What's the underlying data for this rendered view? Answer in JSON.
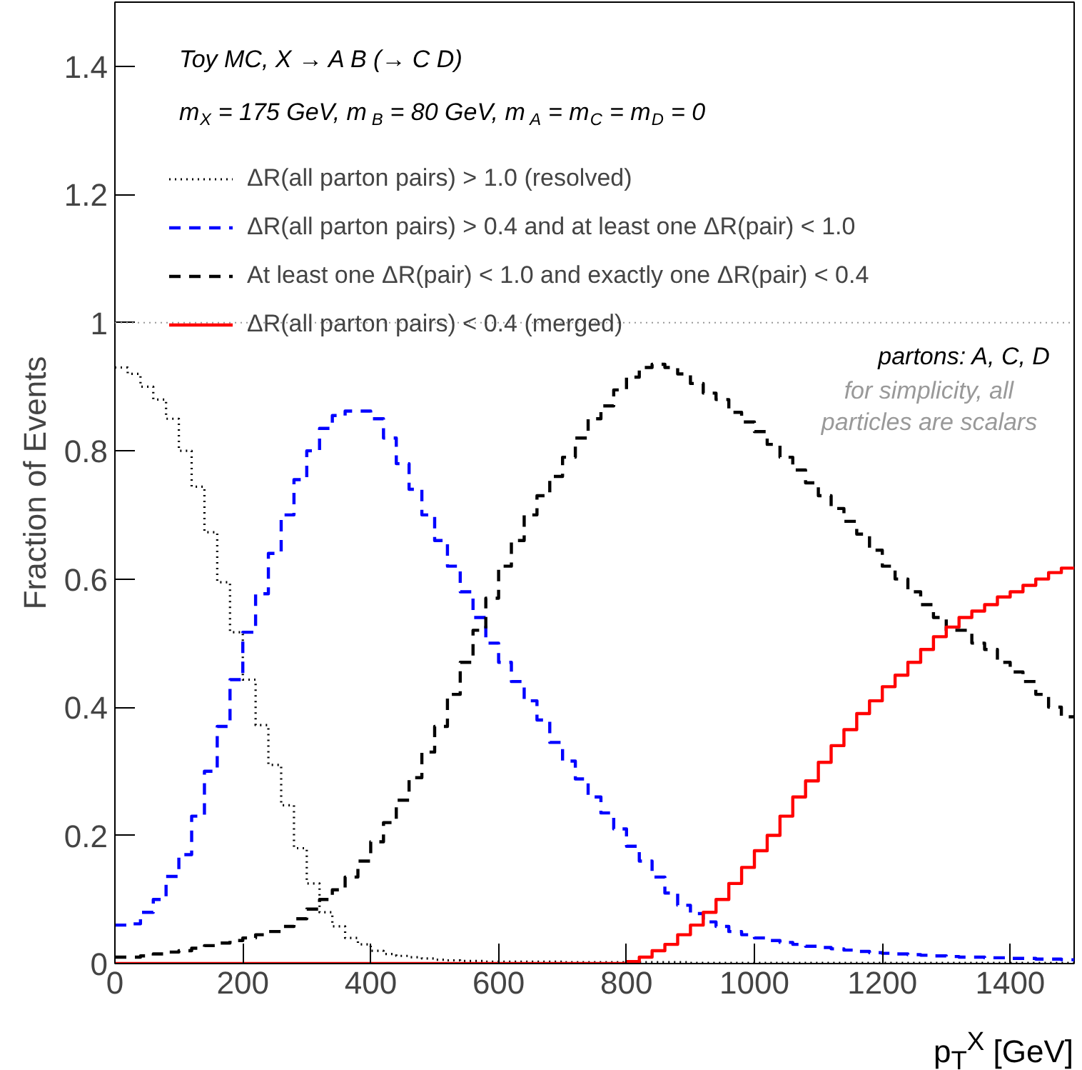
{
  "chart_data": {
    "type": "histogram",
    "xlabel": "p$_{T}$$^{X}$ [GeV]",
    "ylabel": "Fraction of Events",
    "annotations": [
      "Toy MC, X → A B (→ C D)",
      "m$_{X}$ = 175 GeV, m$_{B}$ = 80 GeV, m$_{A}$ = m$_{C}$ = m$_{D}$ = 0",
      "partons: A, C, D",
      "for simplicity, all\nparticles are scalars"
    ],
    "bins": [
      0,
      20,
      40,
      60,
      80,
      100,
      120,
      140,
      160,
      180,
      200,
      220,
      240,
      260,
      280,
      300,
      320,
      340,
      360,
      380,
      400,
      420,
      440,
      460,
      480,
      500,
      520,
      540,
      560,
      580,
      600,
      620,
      640,
      660,
      680,
      700,
      720,
      740,
      760,
      780,
      800,
      820,
      840,
      860,
      880,
      900,
      920,
      940,
      960,
      980,
      1000,
      1020,
      1040,
      1060,
      1080,
      1100,
      1120,
      1140,
      1160,
      1180,
      1200,
      1220,
      1240,
      1260,
      1280,
      1300,
      1320,
      1340,
      1360,
      1380,
      1400,
      1420,
      1440,
      1460,
      1480,
      1500
    ],
    "series": [
      {
        "name": "ΔR(all parton pairs) > 1.0 (resolved)",
        "color": "#000000",
        "line_style": "dotted",
        "values": [
          0.93,
          0.92,
          0.9,
          0.88,
          0.85,
          0.8,
          0.744,
          0.673,
          0.595,
          0.517,
          0.443,
          0.372,
          0.31,
          0.247,
          0.18,
          0.125,
          0.08,
          0.058,
          0.04,
          0.03,
          0.02,
          0.015,
          0.012,
          0.01,
          0.008,
          0.006,
          0.005,
          0.004,
          0.004,
          0.003,
          0.003,
          0.003,
          0.003,
          0.003,
          0.003,
          0.002,
          0.002,
          0.002,
          0.002,
          0.002,
          0.002,
          0.002,
          0.002,
          0.002,
          0.002,
          0.001,
          0.001,
          0.001,
          0.001,
          0.001,
          0.001,
          0.001,
          0.001,
          0.001,
          0.001,
          0.001,
          0.001,
          0.001,
          0.001,
          0.001,
          0.001,
          0.001,
          0.001,
          0.001,
          0.001,
          0.001,
          0.001,
          0.001,
          0.001,
          0.001,
          0.001,
          0.001,
          0.001,
          0.001,
          0.001
        ]
      },
      {
        "name": "ΔR(all parton pairs) > 0.4 and at least one ΔR(pair) < 1.0",
        "color": "#0000ff",
        "line_style": "dashed",
        "values": [
          0.06,
          0.062,
          0.08,
          0.1,
          0.136,
          0.17,
          0.23,
          0.3,
          0.37,
          0.443,
          0.517,
          0.577,
          0.64,
          0.7,
          0.755,
          0.8,
          0.835,
          0.855,
          0.862,
          0.862,
          0.85,
          0.82,
          0.78,
          0.74,
          0.7,
          0.66,
          0.62,
          0.58,
          0.54,
          0.5,
          0.47,
          0.44,
          0.41,
          0.38,
          0.345,
          0.316,
          0.288,
          0.26,
          0.235,
          0.21,
          0.183,
          0.16,
          0.135,
          0.11,
          0.091,
          0.078,
          0.065,
          0.058,
          0.05,
          0.045,
          0.04,
          0.036,
          0.033,
          0.03,
          0.027,
          0.025,
          0.023,
          0.021,
          0.019,
          0.017,
          0.016,
          0.015,
          0.014,
          0.013,
          0.012,
          0.011,
          0.01,
          0.01,
          0.009,
          0.009,
          0.008,
          0.008,
          0.007,
          0.007,
          0.006
        ]
      },
      {
        "name": "At least one ΔR(pair) < 1.0 and exactly one ΔR(pair) < 0.4",
        "color": "#000000",
        "line_style": "dashed",
        "values": [
          0.01,
          0.01,
          0.012,
          0.015,
          0.018,
          0.02,
          0.024,
          0.028,
          0.032,
          0.036,
          0.04,
          0.045,
          0.05,
          0.058,
          0.07,
          0.085,
          0.1,
          0.115,
          0.135,
          0.16,
          0.19,
          0.22,
          0.255,
          0.29,
          0.33,
          0.37,
          0.42,
          0.47,
          0.52,
          0.57,
          0.62,
          0.66,
          0.7,
          0.73,
          0.76,
          0.79,
          0.82,
          0.85,
          0.87,
          0.895,
          0.915,
          0.93,
          0.935,
          0.93,
          0.92,
          0.905,
          0.89,
          0.88,
          0.86,
          0.845,
          0.83,
          0.81,
          0.79,
          0.77,
          0.75,
          0.73,
          0.71,
          0.69,
          0.67,
          0.645,
          0.62,
          0.6,
          0.58,
          0.56,
          0.54,
          0.52,
          0.52,
          0.5,
          0.49,
          0.47,
          0.455,
          0.44,
          0.42,
          0.4,
          0.385
        ]
      },
      {
        "name": "ΔR(all parton pairs) < 0.4 (merged)",
        "color": "#ff0000",
        "line_style": "solid",
        "values": [
          0,
          0,
          0,
          0,
          0,
          0,
          0,
          0,
          0,
          0,
          0,
          0,
          0,
          0,
          0,
          0,
          0,
          0,
          0,
          0,
          0,
          0,
          0,
          0,
          0,
          0,
          0,
          0,
          0,
          0,
          0,
          0,
          0,
          0,
          0,
          0,
          0,
          0,
          0,
          0,
          0.003,
          0.01,
          0.02,
          0.03,
          0.045,
          0.06,
          0.08,
          0.1,
          0.125,
          0.15,
          0.176,
          0.2,
          0.23,
          0.26,
          0.285,
          0.314,
          0.34,
          0.365,
          0.39,
          0.41,
          0.432,
          0.45,
          0.47,
          0.49,
          0.51,
          0.525,
          0.54,
          0.55,
          0.56,
          0.572,
          0.58,
          0.59,
          0.6,
          0.61,
          0.617
        ]
      }
    ],
    "xlim": [
      0,
      1500
    ],
    "ylim": [
      0,
      1.5
    ],
    "xticks": [
      0,
      200,
      400,
      600,
      800,
      1000,
      1200,
      1400
    ],
    "yticks": [
      0,
      0.2,
      0.4,
      0.6,
      0.8,
      1,
      1.2,
      1.4
    ],
    "ref_lines": [
      {
        "axis": "y",
        "value": 1,
        "color": "#999999",
        "line_style": "dotted"
      }
    ],
    "legend": "top left",
    "grid": false
  }
}
